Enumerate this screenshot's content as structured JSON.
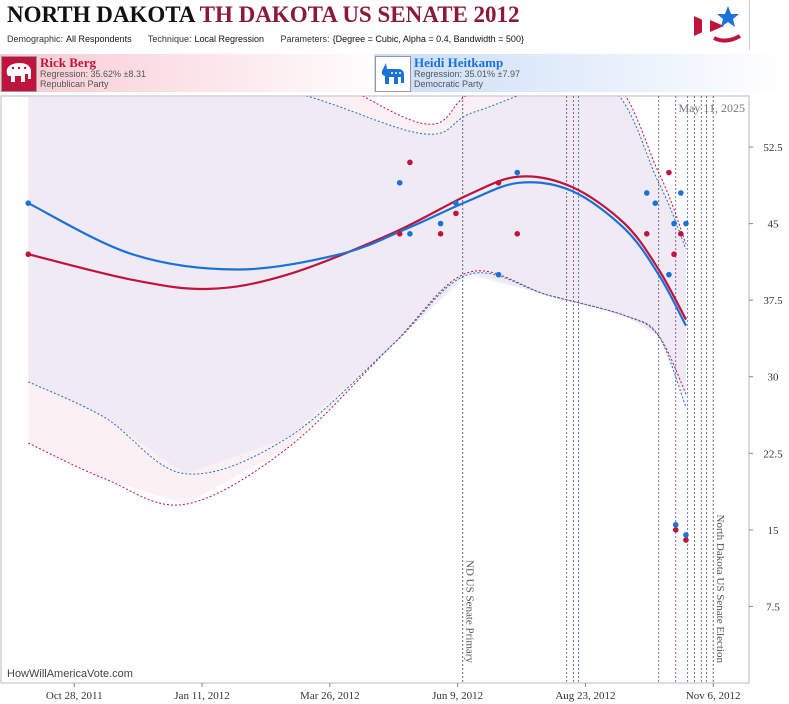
{
  "header": {
    "state": "NORTH DAKOTA",
    "race": "TH DAKOTA US SENATE 2012",
    "demographic_label": "Demographic:",
    "demographic_value": "All Respondents",
    "technique_label": "Technique:",
    "technique_value": "Local Regression",
    "parameters_label": "Parameters:",
    "parameters_value": "{Degree = Cubic, Alpha = 0.4, Bandwidth = 500}"
  },
  "candidates": [
    {
      "name": "Rick Berg",
      "regression": "Regression: 35.62% ±8.31",
      "party": "Republican Party",
      "color": "#c0143c"
    },
    {
      "name": "Heidi Heitkamp",
      "regression": "Regression: 35.01% ±7.97",
      "party": "Democratic Party",
      "color": "#1a72d9"
    }
  ],
  "chart_data": {
    "type": "scatter",
    "date_label": "May 11, 2025",
    "credit": "HowWillAmericaVote.com",
    "x_ticks": [
      "Oct 28, 2011",
      "Jan 11, 2012",
      "Mar 26, 2012",
      "Jun 9, 2012",
      "Aug 23, 2012",
      "Nov 6, 2012"
    ],
    "y_ticks": [
      "7.5",
      "15",
      "22.5",
      "30",
      "37.5",
      "45",
      "52.5"
    ],
    "ylim": [
      0,
      57.5
    ],
    "x_range": [
      "2011-09-15",
      "2012-11-27"
    ],
    "events": [
      {
        "date": "2012-06-12",
        "label": "ND US Senate Primary"
      },
      {
        "date": "2012-11-06",
        "label": "North Dakota US Senate Election"
      }
    ],
    "poll_dates": [
      "2012-08-12",
      "2012-08-16",
      "2012-08-19",
      "2012-10-05",
      "2012-10-15",
      "2012-10-22",
      "2012-10-26",
      "2012-10-30",
      "2012-11-02"
    ],
    "series": [
      {
        "name": "Rick Berg",
        "color": "#c0143c",
        "points": [
          {
            "x": "2011-10-01",
            "y": 42
          },
          {
            "x": "2012-05-06",
            "y": 44
          },
          {
            "x": "2012-05-12",
            "y": 51
          },
          {
            "x": "2012-05-30",
            "y": 44
          },
          {
            "x": "2012-06-08",
            "y": 46
          },
          {
            "x": "2012-07-03",
            "y": 49
          },
          {
            "x": "2012-07-14",
            "y": 44
          },
          {
            "x": "2012-09-28",
            "y": 44
          },
          {
            "x": "2012-10-11",
            "y": 50
          },
          {
            "x": "2012-10-14",
            "y": 42
          },
          {
            "x": "2012-10-15",
            "y": 15
          },
          {
            "x": "2012-10-18",
            "y": 44
          },
          {
            "x": "2012-10-21",
            "y": 14
          }
        ],
        "trend": [
          {
            "x": "2011-10-01",
            "y": 42
          },
          {
            "x": "2011-12-01",
            "y": 39.5
          },
          {
            "x": "2012-01-15",
            "y": 38.6
          },
          {
            "x": "2012-03-01",
            "y": 40
          },
          {
            "x": "2012-05-01",
            "y": 44
          },
          {
            "x": "2012-06-15",
            "y": 47.8
          },
          {
            "x": "2012-07-15",
            "y": 49.6
          },
          {
            "x": "2012-08-15",
            "y": 48.6
          },
          {
            "x": "2012-09-15",
            "y": 45
          },
          {
            "x": "2012-10-05",
            "y": 40.5
          },
          {
            "x": "2012-10-21",
            "y": 35.6
          }
        ],
        "ci_upper": [
          {
            "x": "2011-12-01",
            "y": 63
          },
          {
            "x": "2012-03-01",
            "y": 61
          },
          {
            "x": "2012-05-20",
            "y": 54.8
          },
          {
            "x": "2012-06-20",
            "y": 58
          },
          {
            "x": "2012-09-01",
            "y": 60
          },
          {
            "x": "2012-10-05",
            "y": 50
          },
          {
            "x": "2012-10-21",
            "y": 43
          }
        ],
        "ci_lower": [
          {
            "x": "2011-10-01",
            "y": 23.5
          },
          {
            "x": "2011-11-15",
            "y": 20
          },
          {
            "x": "2012-01-01",
            "y": 17.5
          },
          {
            "x": "2012-03-01",
            "y": 23
          },
          {
            "x": "2012-05-01",
            "y": 33
          },
          {
            "x": "2012-06-15",
            "y": 40.2
          },
          {
            "x": "2012-08-01",
            "y": 38
          },
          {
            "x": "2012-09-15",
            "y": 36
          },
          {
            "x": "2012-10-05",
            "y": 34
          },
          {
            "x": "2012-10-21",
            "y": 28.3
          }
        ]
      },
      {
        "name": "Heidi Heitkamp",
        "color": "#1a72d9",
        "points": [
          {
            "x": "2011-10-01",
            "y": 47
          },
          {
            "x": "2012-05-06",
            "y": 49
          },
          {
            "x": "2012-05-12",
            "y": 44
          },
          {
            "x": "2012-05-30",
            "y": 45
          },
          {
            "x": "2012-06-08",
            "y": 47
          },
          {
            "x": "2012-07-03",
            "y": 40
          },
          {
            "x": "2012-07-14",
            "y": 50
          },
          {
            "x": "2012-09-28",
            "y": 48
          },
          {
            "x": "2012-10-03",
            "y": 47
          },
          {
            "x": "2012-10-11",
            "y": 40
          },
          {
            "x": "2012-10-14",
            "y": 45
          },
          {
            "x": "2012-10-15",
            "y": 15.5
          },
          {
            "x": "2012-10-18",
            "y": 48
          },
          {
            "x": "2012-10-21",
            "y": 45
          },
          {
            "x": "2012-10-21",
            "y": 14.5
          }
        ],
        "trend": [
          {
            "x": "2011-10-01",
            "y": 47
          },
          {
            "x": "2011-12-01",
            "y": 42
          },
          {
            "x": "2012-02-01",
            "y": 40.5
          },
          {
            "x": "2012-04-01",
            "y": 42
          },
          {
            "x": "2012-05-10",
            "y": 44.5
          },
          {
            "x": "2012-06-15",
            "y": 47.2
          },
          {
            "x": "2012-07-15",
            "y": 49
          },
          {
            "x": "2012-08-15",
            "y": 48.2
          },
          {
            "x": "2012-09-15",
            "y": 44.5
          },
          {
            "x": "2012-10-05",
            "y": 40
          },
          {
            "x": "2012-10-21",
            "y": 35
          }
        ],
        "ci_upper": [
          {
            "x": "2011-12-01",
            "y": 60
          },
          {
            "x": "2012-03-01",
            "y": 58
          },
          {
            "x": "2012-05-20",
            "y": 53.8
          },
          {
            "x": "2012-06-20",
            "y": 56
          },
          {
            "x": "2012-09-01",
            "y": 59
          },
          {
            "x": "2012-10-05",
            "y": 49
          },
          {
            "x": "2012-10-21",
            "y": 42.5
          }
        ],
        "ci_lower": [
          {
            "x": "2011-10-01",
            "y": 29.5
          },
          {
            "x": "2011-11-15",
            "y": 26
          },
          {
            "x": "2012-01-01",
            "y": 20.5
          },
          {
            "x": "2012-03-01",
            "y": 24
          },
          {
            "x": "2012-05-01",
            "y": 33
          },
          {
            "x": "2012-06-15",
            "y": 40
          },
          {
            "x": "2012-08-01",
            "y": 38
          },
          {
            "x": "2012-09-15",
            "y": 36
          },
          {
            "x": "2012-10-05",
            "y": 34
          },
          {
            "x": "2012-10-21",
            "y": 27
          }
        ]
      }
    ]
  }
}
